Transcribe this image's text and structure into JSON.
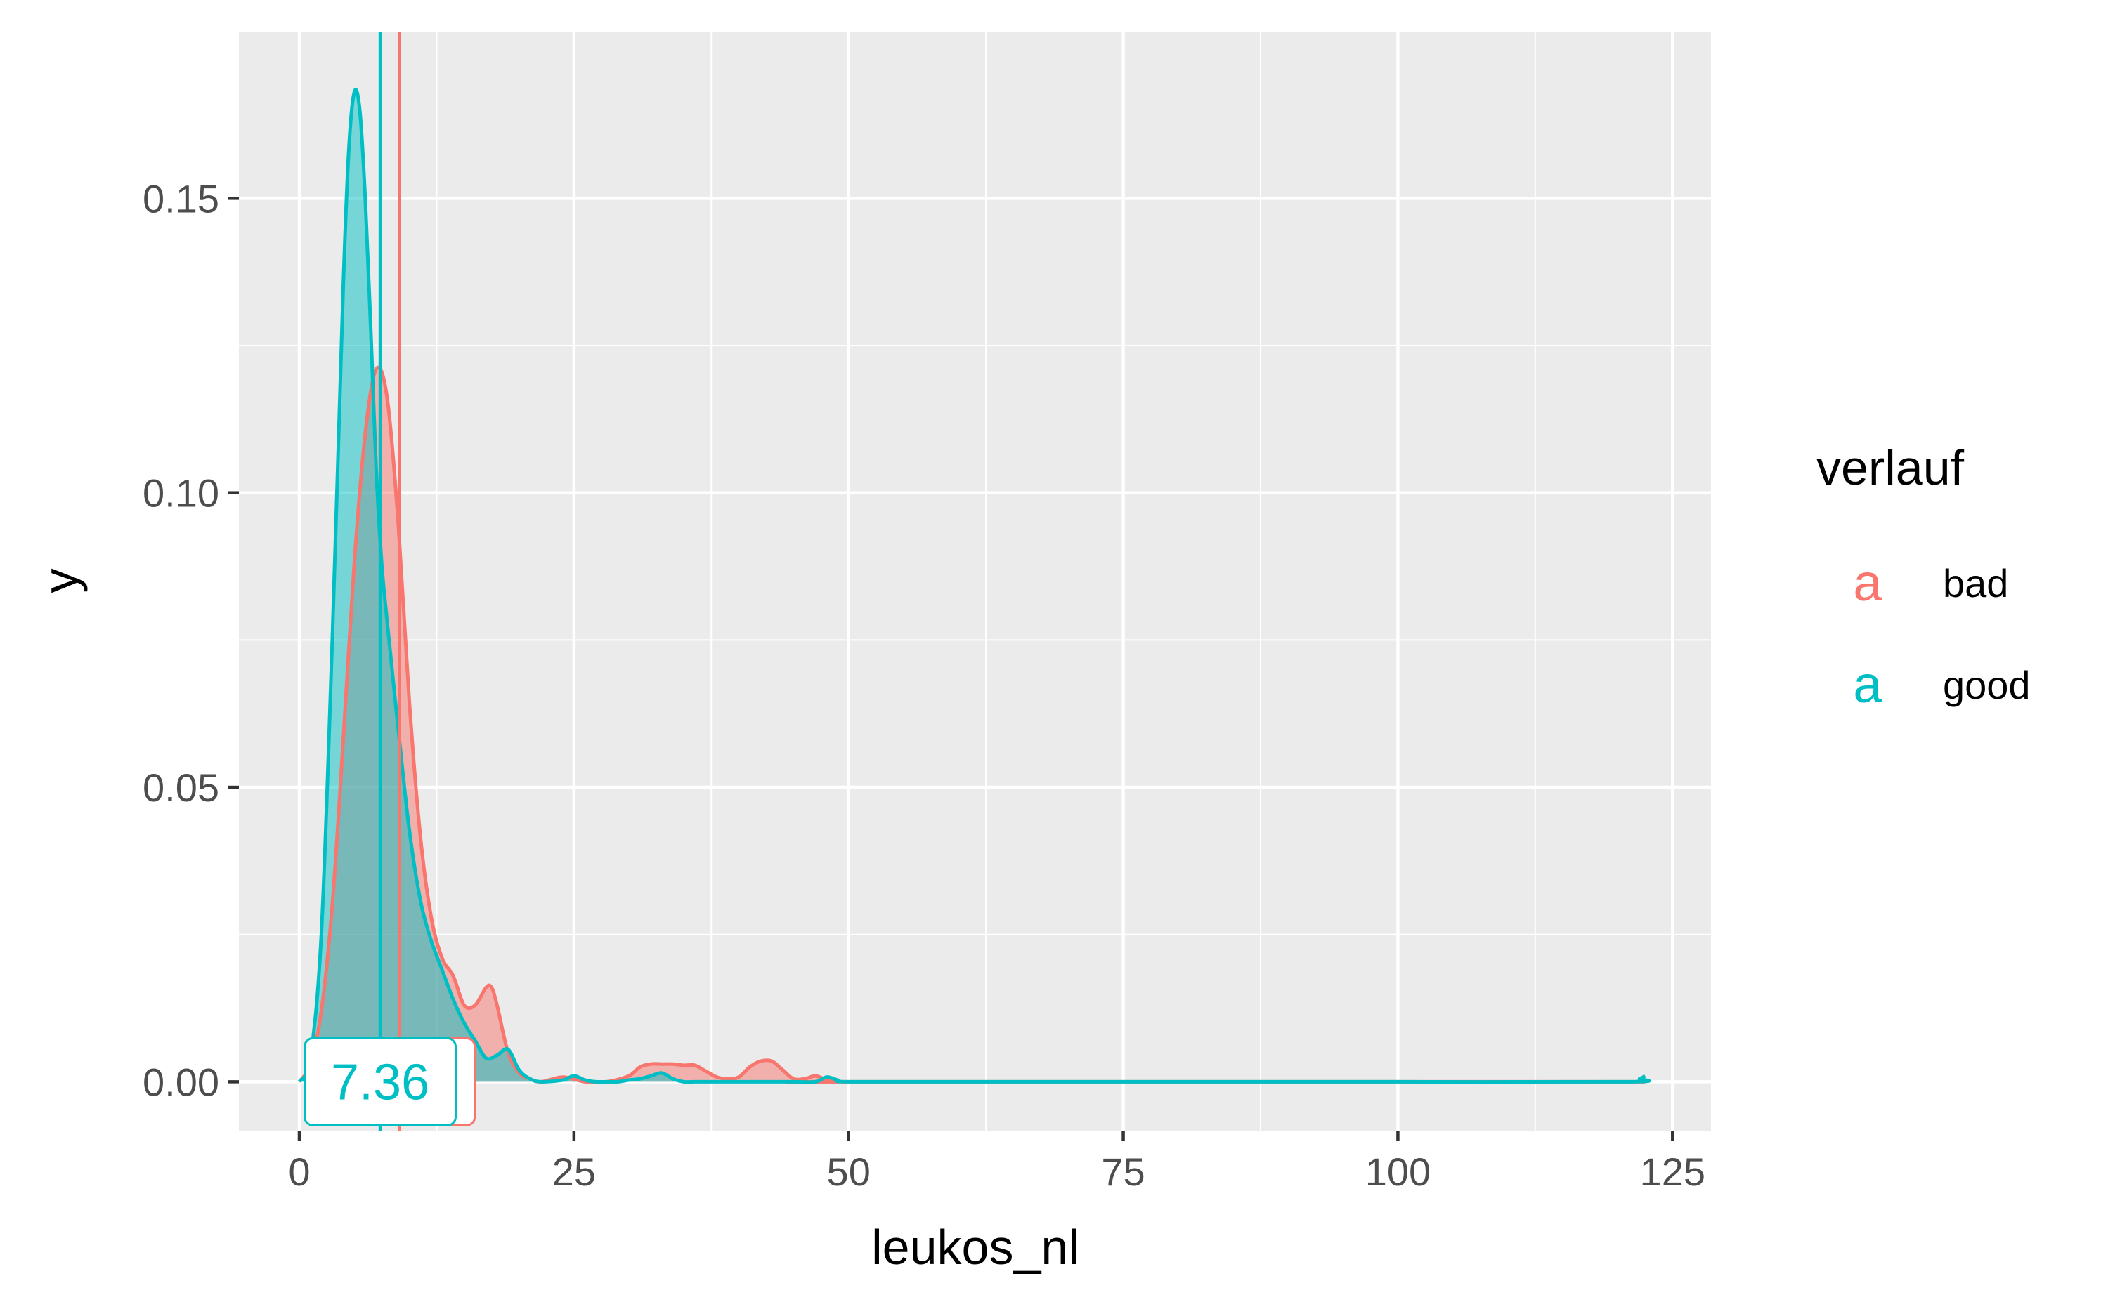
{
  "chart_data": {
    "type": "area",
    "title": "",
    "xlabel": "leukos_nl",
    "ylabel": "y",
    "xlim": [
      -5.5,
      128.5
    ],
    "ylim": [
      -0.0083,
      0.1783
    ],
    "x_ticks": [
      0,
      25,
      50,
      75,
      100,
      125
    ],
    "x_tick_labels": [
      "0",
      "25",
      "50",
      "75",
      "100",
      "125"
    ],
    "y_ticks": [
      0.0,
      0.05,
      0.1,
      0.15
    ],
    "y_tick_labels": [
      "0.00",
      "0.05",
      "0.10",
      "0.15"
    ],
    "grid": true,
    "legend": {
      "title": "verlauf",
      "position": "right",
      "key_glyph": "a"
    },
    "series": [
      {
        "name": "bad",
        "color": "#F8766D",
        "fill_opacity": 0.5,
        "x": [
          0,
          1,
          2,
          3,
          4,
          5,
          6,
          7,
          8,
          9,
          10,
          11,
          12,
          13,
          14,
          15,
          16,
          17,
          17.5,
          18,
          19,
          20,
          21,
          22,
          24,
          26,
          28,
          30,
          31,
          32,
          33,
          34,
          35,
          36,
          37,
          38,
          39,
          40,
          41,
          42,
          43,
          44,
          45,
          46,
          47,
          48,
          49,
          50,
          122.5
        ],
        "y": [
          0,
          0.003,
          0.012,
          0.03,
          0.058,
          0.088,
          0.11,
          0.121,
          0.116,
          0.095,
          0.065,
          0.042,
          0.028,
          0.021,
          0.018,
          0.013,
          0.013,
          0.016,
          0.016,
          0.013,
          0.005,
          0.0015,
          0.0005,
          0,
          0.0008,
          0,
          0,
          0.001,
          0.0025,
          0.003,
          0.003,
          0.003,
          0.0028,
          0.0028,
          0.0018,
          0.0008,
          0.0005,
          0.0008,
          0.0025,
          0.0035,
          0.0035,
          0.002,
          0.0005,
          0.0005,
          0.001,
          0.0003,
          0,
          0,
          0
        ],
        "vline": 9.1
      },
      {
        "name": "good",
        "color": "#00BFC4",
        "fill_opacity": 0.5,
        "x": [
          0,
          1,
          2,
          3,
          4,
          4.5,
          5,
          5.5,
          6,
          6.5,
          7,
          7.5,
          8,
          9,
          10,
          11,
          12,
          13,
          14,
          15,
          16,
          17,
          18,
          19,
          20,
          21,
          22,
          24,
          25,
          26,
          27,
          28,
          29,
          30,
          31,
          32,
          33,
          34,
          35,
          36,
          40,
          45,
          47,
          48,
          49,
          50,
          60,
          80,
          100,
          121,
          122,
          122.5
        ],
        "y": [
          0,
          0.004,
          0.025,
          0.075,
          0.135,
          0.158,
          0.168,
          0.165,
          0.15,
          0.128,
          0.104,
          0.088,
          0.078,
          0.06,
          0.043,
          0.031,
          0.024,
          0.019,
          0.014,
          0.01,
          0.007,
          0.004,
          0.0045,
          0.0055,
          0.002,
          0.0005,
          0,
          0.0003,
          0.001,
          0.0003,
          0,
          0,
          0,
          0.0003,
          0.0005,
          0.001,
          0.0015,
          0.0005,
          0,
          0,
          0,
          0,
          0,
          0.0008,
          0.0003,
          0,
          0,
          0,
          0,
          0,
          0.0005,
          0.001
        ],
        "vline": 7.36
      }
    ],
    "value_labels": [
      {
        "series": "bad",
        "x": 9.1,
        "y": 0,
        "text": ""
      },
      {
        "series": "good",
        "x": 7.36,
        "y": 0,
        "text": "7.36"
      }
    ]
  }
}
